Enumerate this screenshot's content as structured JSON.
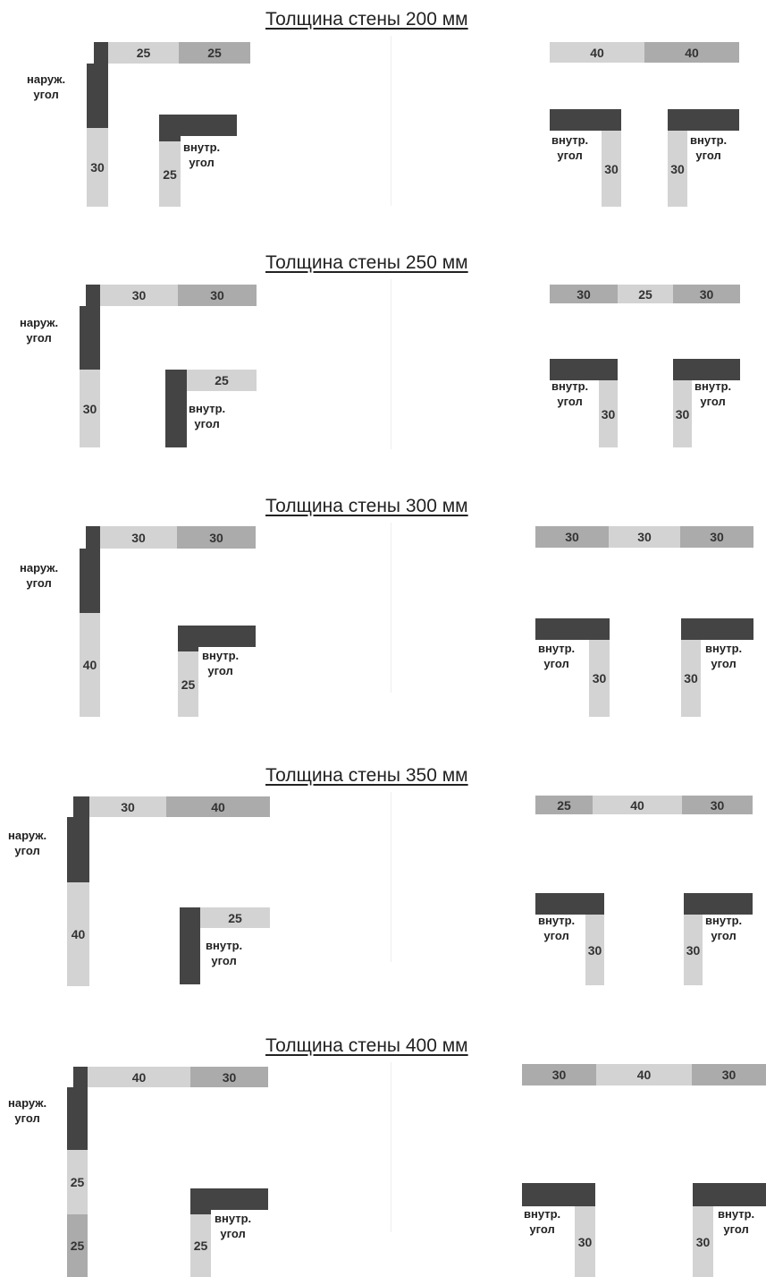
{
  "labels": {
    "outer_line1": "наруж.",
    "outer_line2": "угол",
    "inner_line1": "внутр.",
    "inner_line2": "угол"
  },
  "sections": [
    {
      "title": "Толщина стены 200 мм",
      "outer_corner": {
        "top": [
          "25",
          "25"
        ],
        "side": [
          "30"
        ]
      },
      "inner_corner": {
        "side": "25",
        "top": ""
      },
      "wall_row": [
        "40",
        "40"
      ],
      "wall_corner_left": "30",
      "wall_corner_right": "30"
    },
    {
      "title": "Толщина стены 250 мм",
      "outer_corner": {
        "top": [
          "30",
          "30"
        ],
        "side": [
          "30"
        ]
      },
      "inner_corner": {
        "side": "",
        "top": "25"
      },
      "wall_row": [
        "30",
        "25",
        "30"
      ],
      "wall_corner_left": "30",
      "wall_corner_right": "30"
    },
    {
      "title": "Толщина стены 300 мм",
      "outer_corner": {
        "top": [
          "30",
          "30"
        ],
        "side": [
          "40"
        ]
      },
      "inner_corner": {
        "side": "25",
        "top": ""
      },
      "wall_row": [
        "30",
        "30",
        "30"
      ],
      "wall_corner_left": "30",
      "wall_corner_right": "30"
    },
    {
      "title": "Толщина стены 350 мм",
      "outer_corner": {
        "top": [
          "30",
          "40"
        ],
        "side": [
          "40"
        ]
      },
      "inner_corner": {
        "side": "",
        "top": "25"
      },
      "wall_row": [
        "25",
        "40",
        "30"
      ],
      "wall_corner_left": "30",
      "wall_corner_right": "30"
    },
    {
      "title": "Толщина стены 400 мм",
      "outer_corner": {
        "top": [
          "40",
          "30"
        ],
        "side": [
          "25",
          "25"
        ]
      },
      "inner_corner": {
        "side": "25",
        "top": ""
      },
      "wall_row": [
        "30",
        "40",
        "30"
      ],
      "wall_corner_left": "30",
      "wall_corner_right": "30"
    }
  ]
}
